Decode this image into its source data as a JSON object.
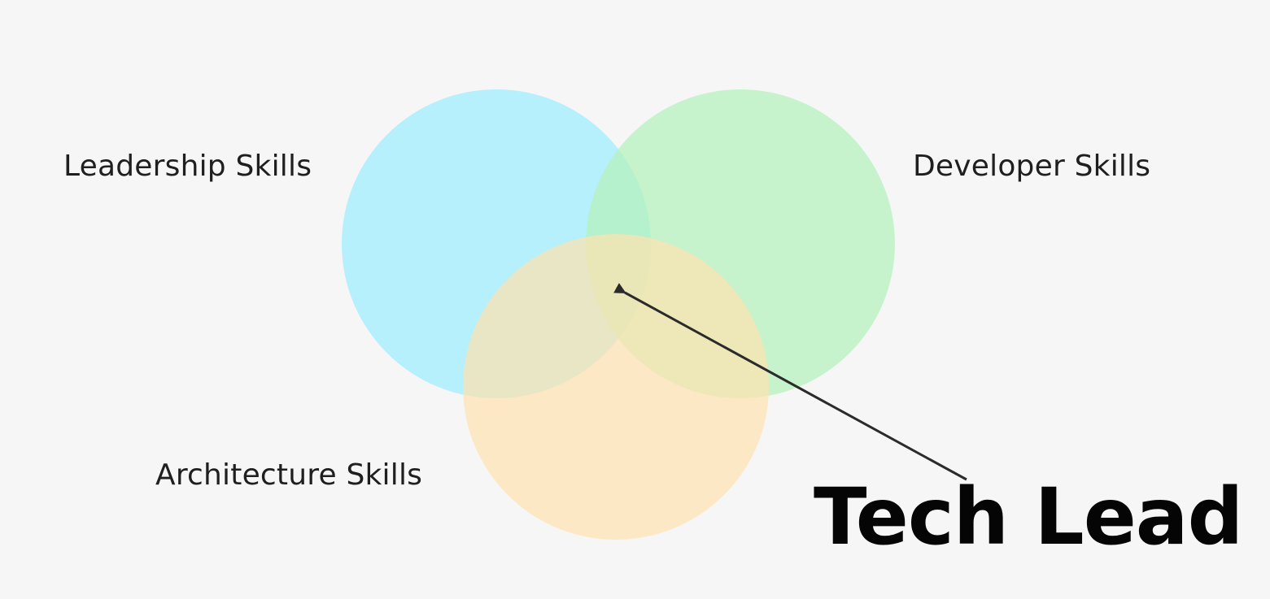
{
  "sets": [
    {
      "id": "leadership",
      "label": "Leadership Skills",
      "color": "#aeeffc"
    },
    {
      "id": "developer",
      "label": "Developer Skills",
      "color": "#b5f1bd"
    },
    {
      "id": "architecture",
      "label": "Architecture Skills",
      "color": "#fde2b0"
    }
  ],
  "callout": {
    "label": "Tech Lead",
    "points_to": "intersection of all three sets"
  },
  "colors": {
    "background": "#f6f6f7",
    "arrow": "#2b2b2b"
  }
}
